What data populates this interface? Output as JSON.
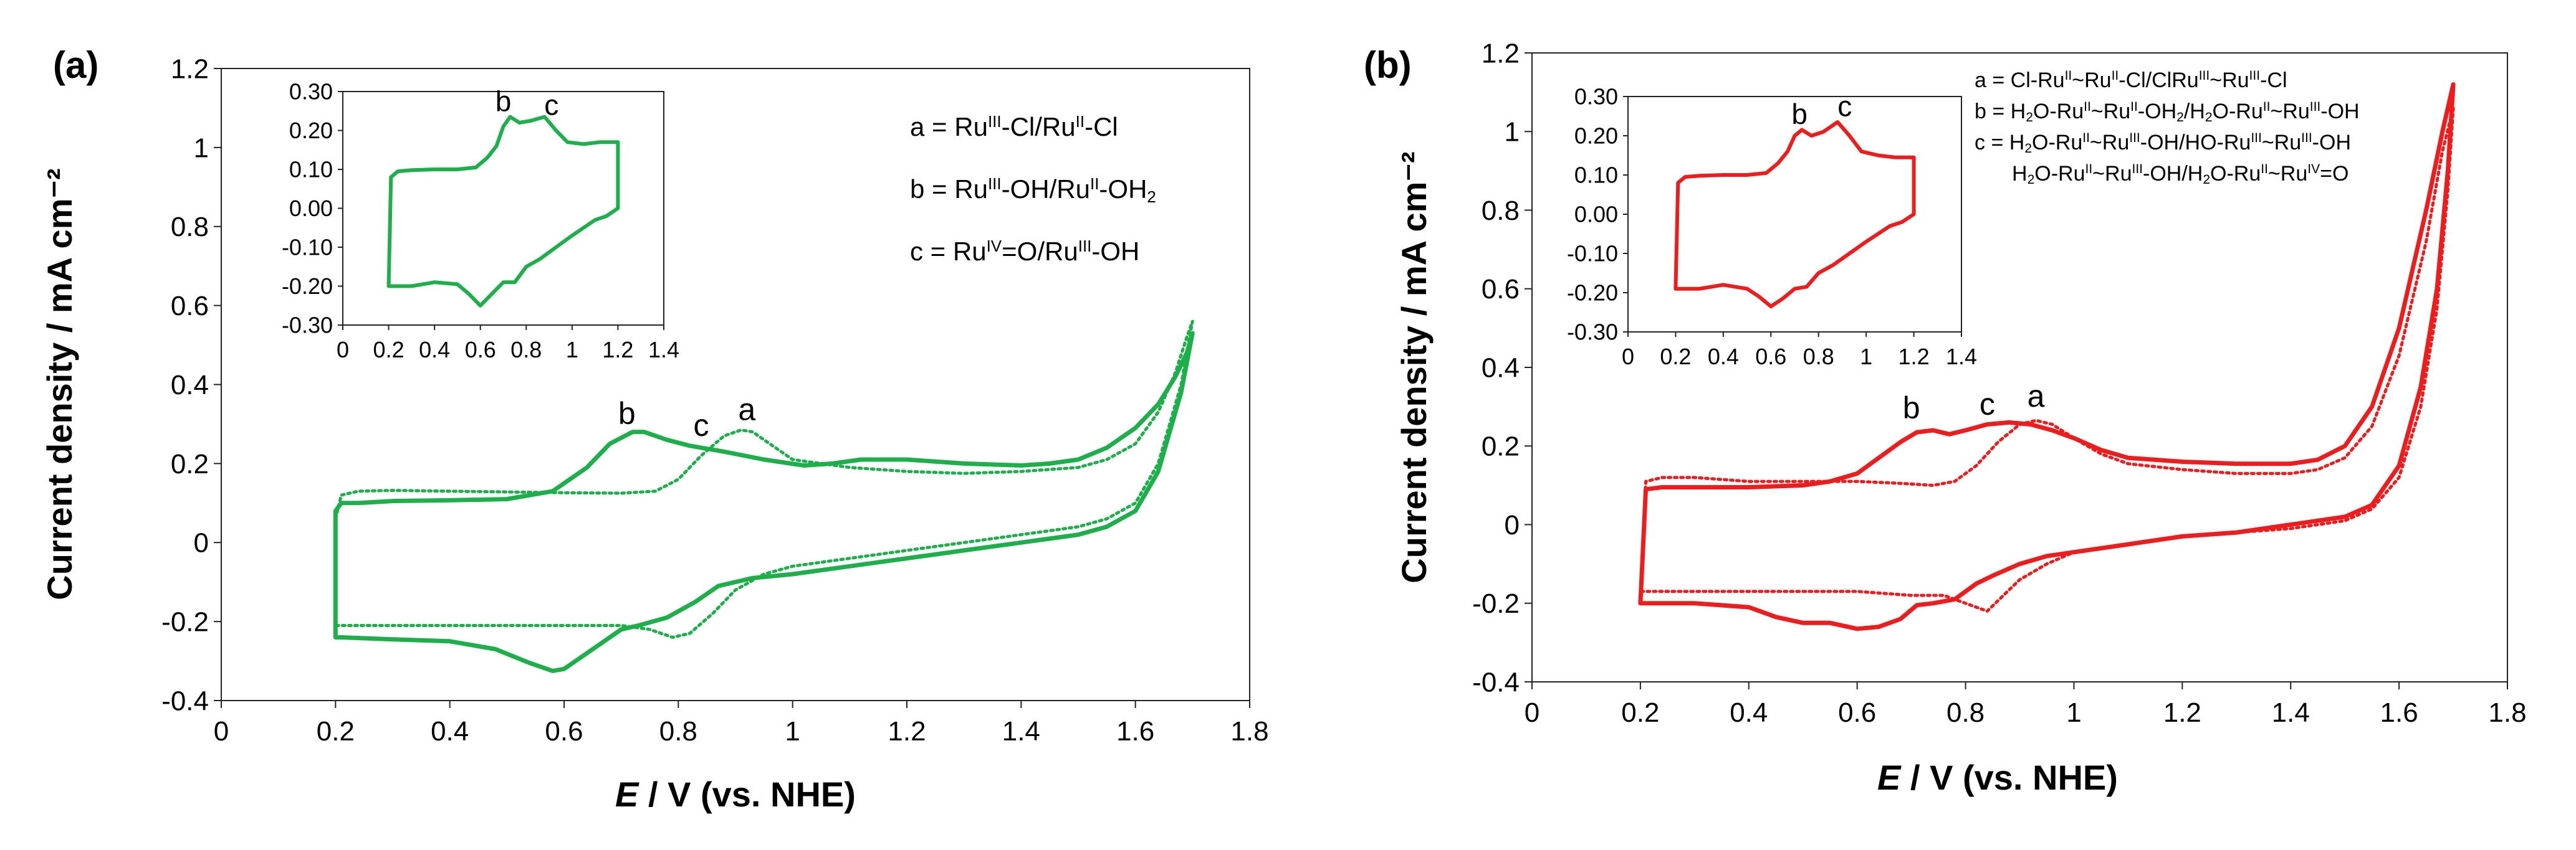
{
  "chart_data": [
    {
      "type": "line",
      "panel_label": "(a)",
      "xlabel_italic": "E",
      "xlabel_rest": " / V (vs. NHE)",
      "ylabel": "Current density / mA cm⁻²",
      "xlim": [
        0,
        1.8
      ],
      "ylim": [
        -0.4,
        1.2
      ],
      "x_ticks": [
        0,
        0.2,
        0.4,
        0.6,
        0.8,
        1,
        1.2,
        1.4,
        1.6,
        1.8
      ],
      "x_tick_labels": [
        "0",
        "0.2",
        "0.4",
        "0.6",
        "0.8",
        "1",
        "1.2",
        "1.4",
        "1.6",
        "1.8"
      ],
      "y_ticks": [
        -0.4,
        -0.2,
        0,
        0.2,
        0.4,
        0.6,
        0.8,
        1,
        1.2
      ],
      "y_tick_labels": [
        "-0.4",
        "-0.2",
        "0",
        "0.2",
        "0.4",
        "0.6",
        "0.8",
        "1",
        "1.2"
      ],
      "color": "#1db04a",
      "series": [
        {
          "name": "solid",
          "style": "solid",
          "x": [
            0.2,
            0.21,
            0.24,
            0.3,
            0.4,
            0.5,
            0.58,
            0.64,
            0.68,
            0.72,
            0.74,
            0.78,
            0.82,
            0.88,
            0.95,
            1.02,
            1.07,
            1.12,
            1.2,
            1.3,
            1.4,
            1.45,
            1.5,
            1.55,
            1.6,
            1.64,
            1.67,
            1.69,
            1.7,
            1.68,
            1.64,
            1.6,
            1.55,
            1.5,
            1.4,
            1.3,
            1.2,
            1.1,
            1.0,
            0.93,
            0.87,
            0.83,
            0.78,
            0.73,
            0.7,
            0.66,
            0.62,
            0.6,
            0.58,
            0.54,
            0.48,
            0.4,
            0.3,
            0.21,
            0.2,
            0.2
          ],
          "y": [
            0.08,
            0.1,
            0.1,
            0.105,
            0.107,
            0.11,
            0.13,
            0.19,
            0.25,
            0.28,
            0.28,
            0.26,
            0.245,
            0.23,
            0.21,
            0.195,
            0.2,
            0.21,
            0.21,
            0.2,
            0.195,
            0.2,
            0.21,
            0.24,
            0.29,
            0.35,
            0.42,
            0.48,
            0.53,
            0.38,
            0.18,
            0.08,
            0.04,
            0.02,
            0.0,
            -0.02,
            -0.04,
            -0.06,
            -0.08,
            -0.09,
            -0.11,
            -0.15,
            -0.19,
            -0.21,
            -0.22,
            -0.26,
            -0.3,
            -0.32,
            -0.325,
            -0.305,
            -0.27,
            -0.25,
            -0.245,
            -0.24,
            -0.24,
            0.08
          ]
        },
        {
          "name": "dotted",
          "style": "dotted",
          "x": [
            0.2,
            0.21,
            0.24,
            0.3,
            0.4,
            0.5,
            0.6,
            0.7,
            0.76,
            0.8,
            0.84,
            0.88,
            0.91,
            0.93,
            0.96,
            1.0,
            1.1,
            1.2,
            1.3,
            1.4,
            1.5,
            1.55,
            1.6,
            1.64,
            1.67,
            1.69,
            1.7,
            1.68,
            1.64,
            1.6,
            1.55,
            1.5,
            1.4,
            1.3,
            1.2,
            1.1,
            1.0,
            0.95,
            0.9,
            0.86,
            0.82,
            0.79,
            0.75,
            0.7,
            0.6,
            0.5,
            0.4,
            0.3,
            0.21,
            0.2
          ],
          "y": [
            0.06,
            0.12,
            0.13,
            0.132,
            0.13,
            0.128,
            0.126,
            0.125,
            0.13,
            0.16,
            0.22,
            0.27,
            0.285,
            0.28,
            0.25,
            0.21,
            0.19,
            0.18,
            0.175,
            0.18,
            0.19,
            0.21,
            0.25,
            0.33,
            0.43,
            0.52,
            0.56,
            0.4,
            0.2,
            0.1,
            0.06,
            0.04,
            0.02,
            0.0,
            -0.02,
            -0.04,
            -0.06,
            -0.08,
            -0.12,
            -0.18,
            -0.23,
            -0.24,
            -0.22,
            -0.21,
            -0.21,
            -0.21,
            -0.21,
            -0.21,
            -0.21,
            -0.21
          ]
        }
      ],
      "peak_labels": [
        {
          "text": "b",
          "x": 0.71,
          "y": 0.3
        },
        {
          "text": "c",
          "x": 0.84,
          "y": 0.27
        },
        {
          "text": "a",
          "x": 0.92,
          "y": 0.31
        }
      ],
      "legend": [
        {
          "key": "a = ",
          "parts": [
            "Ru",
            "III",
            "-Cl/Ru",
            "II",
            "-Cl"
          ]
        },
        {
          "key": "b = ",
          "parts": [
            "Ru",
            "III",
            "-OH/Ru",
            "II",
            "-OH",
            "2",
            ""
          ]
        },
        {
          "key": "c = ",
          "parts": [
            "Ru",
            "IV",
            "=O/Ru",
            "III",
            "-OH"
          ]
        }
      ],
      "inset": {
        "xlim": [
          0,
          1.4
        ],
        "ylim": [
          -0.3,
          0.3
        ],
        "x_ticks": [
          0,
          0.2,
          0.4,
          0.6,
          0.8,
          1,
          1.2,
          1.4
        ],
        "x_tick_labels": [
          "0",
          "0.2",
          "0.4",
          "0.6",
          "0.8",
          "1",
          "1.2",
          "1.4"
        ],
        "y_ticks": [
          -0.3,
          -0.2,
          -0.1,
          0,
          0.1,
          0.2,
          0.3
        ],
        "y_tick_labels": [
          "-0.30",
          "-0.20",
          "-0.10",
          "0.00",
          "0.10",
          "0.20",
          "0.30"
        ],
        "series": [
          {
            "name": "inset",
            "style": "solid",
            "x": [
              0.2,
              0.21,
              0.24,
              0.3,
              0.4,
              0.5,
              0.58,
              0.63,
              0.67,
              0.7,
              0.73,
              0.77,
              0.82,
              0.88,
              0.93,
              0.98,
              1.05,
              1.12,
              1.2,
              1.2,
              1.15,
              1.1,
              1.0,
              0.93,
              0.86,
              0.8,
              0.75,
              0.7,
              0.65,
              0.6,
              0.55,
              0.5,
              0.4,
              0.3,
              0.2,
              0.2
            ],
            "y": [
              -0.2,
              0.08,
              0.095,
              0.098,
              0.1,
              0.1,
              0.105,
              0.13,
              0.16,
              0.21,
              0.235,
              0.22,
              0.225,
              0.235,
              0.2,
              0.17,
              0.165,
              0.17,
              0.17,
              0.0,
              -0.02,
              -0.03,
              -0.07,
              -0.1,
              -0.13,
              -0.15,
              -0.19,
              -0.19,
              -0.22,
              -0.25,
              -0.22,
              -0.195,
              -0.19,
              -0.2,
              -0.2,
              -0.2
            ]
          }
        ],
        "peak_labels": [
          {
            "text": "b",
            "x": 0.7,
            "y": 0.25
          },
          {
            "text": "c",
            "x": 0.91,
            "y": 0.24
          }
        ]
      }
    },
    {
      "type": "line",
      "panel_label": "(b)",
      "xlabel_italic": "E",
      "xlabel_rest": " / V (vs. NHE)",
      "ylabel": "Current density / mA cm⁻²",
      "xlim": [
        0,
        1.8
      ],
      "ylim": [
        -0.4,
        1.2
      ],
      "x_ticks": [
        0,
        0.2,
        0.4,
        0.6,
        0.8,
        1,
        1.2,
        1.4,
        1.6,
        1.8
      ],
      "x_tick_labels": [
        "0",
        "0.2",
        "0.4",
        "0.6",
        "0.8",
        "1",
        "1.2",
        "1.4",
        "1.6",
        "1.8"
      ],
      "y_ticks": [
        -0.4,
        -0.2,
        0,
        0.2,
        0.4,
        0.6,
        0.8,
        1,
        1.2
      ],
      "y_tick_labels": [
        "-0.4",
        "-0.2",
        "0",
        "0.2",
        "0.4",
        "0.6",
        "0.8",
        "1",
        "1.2"
      ],
      "color": "#ee1c1c",
      "series": [
        {
          "name": "solid",
          "style": "solid",
          "x": [
            0.2,
            0.21,
            0.24,
            0.3,
            0.4,
            0.5,
            0.55,
            0.6,
            0.64,
            0.68,
            0.71,
            0.74,
            0.77,
            0.8,
            0.84,
            0.88,
            0.92,
            0.96,
            1.0,
            1.05,
            1.1,
            1.2,
            1.3,
            1.4,
            1.45,
            1.5,
            1.55,
            1.6,
            1.65,
            1.68,
            1.7,
            1.69,
            1.67,
            1.64,
            1.6,
            1.55,
            1.5,
            1.4,
            1.3,
            1.2,
            1.1,
            1.0,
            0.95,
            0.9,
            0.85,
            0.82,
            0.78,
            0.74,
            0.71,
            0.68,
            0.64,
            0.6,
            0.55,
            0.5,
            0.45,
            0.4,
            0.3,
            0.2,
            0.2
          ],
          "y": [
            -0.2,
            0.09,
            0.095,
            0.095,
            0.095,
            0.1,
            0.11,
            0.13,
            0.17,
            0.21,
            0.235,
            0.24,
            0.23,
            0.24,
            0.255,
            0.26,
            0.255,
            0.24,
            0.22,
            0.19,
            0.17,
            0.16,
            0.155,
            0.155,
            0.165,
            0.2,
            0.3,
            0.5,
            0.8,
            1.0,
            1.12,
            0.9,
            0.6,
            0.35,
            0.15,
            0.05,
            0.02,
            0.0,
            -0.02,
            -0.03,
            -0.05,
            -0.07,
            -0.08,
            -0.1,
            -0.13,
            -0.15,
            -0.19,
            -0.2,
            -0.205,
            -0.24,
            -0.26,
            -0.265,
            -0.25,
            -0.25,
            -0.235,
            -0.21,
            -0.2,
            -0.2,
            -0.2
          ]
        },
        {
          "name": "dotted",
          "style": "dotted",
          "x": [
            0.2,
            0.21,
            0.24,
            0.3,
            0.4,
            0.5,
            0.6,
            0.68,
            0.74,
            0.78,
            0.82,
            0.86,
            0.9,
            0.93,
            0.96,
            1.0,
            1.05,
            1.1,
            1.2,
            1.3,
            1.4,
            1.45,
            1.5,
            1.55,
            1.6,
            1.65,
            1.68,
            1.7,
            1.69,
            1.67,
            1.64,
            1.6,
            1.55,
            1.5,
            1.4,
            1.3,
            1.2,
            1.1,
            1.0,
            0.95,
            0.9,
            0.87,
            0.84,
            0.8,
            0.76,
            0.7,
            0.6,
            0.5,
            0.4,
            0.3,
            0.2,
            0.2
          ],
          "y": [
            -0.18,
            0.11,
            0.12,
            0.12,
            0.11,
            0.11,
            0.11,
            0.105,
            0.1,
            0.11,
            0.15,
            0.21,
            0.255,
            0.265,
            0.255,
            0.22,
            0.18,
            0.155,
            0.14,
            0.13,
            0.13,
            0.14,
            0.17,
            0.25,
            0.43,
            0.72,
            0.95,
            1.06,
            0.85,
            0.55,
            0.3,
            0.12,
            0.04,
            0.01,
            -0.01,
            -0.02,
            -0.03,
            -0.05,
            -0.07,
            -0.1,
            -0.14,
            -0.18,
            -0.22,
            -0.2,
            -0.18,
            -0.18,
            -0.17,
            -0.17,
            -0.17,
            -0.17,
            -0.17,
            -0.18
          ]
        }
      ],
      "peak_labels": [
        {
          "text": "b",
          "x": 0.7,
          "y": 0.27
        },
        {
          "text": "c",
          "x": 0.84,
          "y": 0.28
        },
        {
          "text": "a",
          "x": 0.93,
          "y": 0.3
        }
      ],
      "legend": [
        {
          "key": "a = ",
          "parts": [
            "Cl-Ru",
            "II",
            "~Ru",
            "II",
            "-Cl/ClRu",
            "III",
            "~Ru",
            "III",
            "-Cl"
          ]
        },
        {
          "key": "b = ",
          "parts": [
            "H",
            "2",
            "O-Ru",
            "II",
            "~Ru",
            "II",
            "-OH",
            "2",
            "/H",
            "2",
            "O-Ru",
            "II",
            "~Ru",
            "III",
            "-OH"
          ]
        },
        {
          "key": "c = ",
          "parts": [
            "H",
            "2",
            "O-Ru",
            "II",
            "~Ru",
            "III",
            "-OH/HO-Ru",
            "III",
            "~Ru",
            "III",
            "-OH"
          ]
        },
        {
          "key": "",
          "parts": [
            "H",
            "2",
            "O-Ru",
            "II",
            "~Ru",
            "III",
            "-OH/H",
            "2",
            "O-Ru",
            "II",
            "~Ru",
            "IV",
            "=O"
          ]
        }
      ],
      "inset": {
        "xlim": [
          0,
          1.4
        ],
        "ylim": [
          -0.3,
          0.3
        ],
        "x_ticks": [
          0,
          0.2,
          0.4,
          0.6,
          0.8,
          1,
          1.2,
          1.4
        ],
        "x_tick_labels": [
          "0",
          "0.2",
          "0.4",
          "0.6",
          "0.8",
          "1",
          "1.2",
          "1.4"
        ],
        "y_ticks": [
          -0.3,
          -0.2,
          -0.1,
          0,
          0.1,
          0.2,
          0.3
        ],
        "y_tick_labels": [
          "-0.30",
          "-0.20",
          "-0.10",
          "0.00",
          "0.10",
          "0.20",
          "0.30"
        ],
        "series": [
          {
            "name": "inset",
            "style": "solid",
            "x": [
              0.2,
              0.21,
              0.24,
              0.3,
              0.4,
              0.5,
              0.58,
              0.63,
              0.67,
              0.7,
              0.73,
              0.77,
              0.82,
              0.88,
              0.93,
              0.98,
              1.05,
              1.12,
              1.2,
              1.2,
              1.15,
              1.1,
              1.0,
              0.93,
              0.86,
              0.8,
              0.75,
              0.7,
              0.65,
              0.6,
              0.55,
              0.5,
              0.4,
              0.3,
              0.2,
              0.2
            ],
            "y": [
              -0.19,
              0.08,
              0.095,
              0.098,
              0.1,
              0.1,
              0.105,
              0.13,
              0.16,
              0.2,
              0.215,
              0.2,
              0.21,
              0.235,
              0.2,
              0.16,
              0.15,
              0.145,
              0.145,
              0.0,
              -0.02,
              -0.03,
              -0.07,
              -0.1,
              -0.13,
              -0.15,
              -0.185,
              -0.19,
              -0.215,
              -0.235,
              -0.21,
              -0.19,
              -0.18,
              -0.19,
              -0.19,
              -0.19
            ]
          }
        ],
        "peak_labels": [
          {
            "text": "b",
            "x": 0.72,
            "y": 0.23
          },
          {
            "text": "c",
            "x": 0.91,
            "y": 0.25
          }
        ]
      }
    }
  ]
}
